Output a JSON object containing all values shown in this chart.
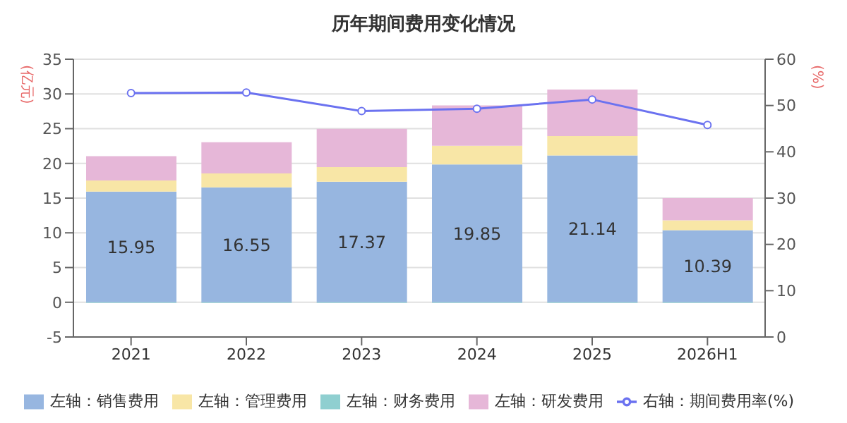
{
  "chart_data": {
    "type": "bar",
    "title": "历年期间费用变化情况",
    "ylabel": "(亿元)",
    "y2label": "(%)",
    "categories": [
      "2021",
      "2022",
      "2023",
      "2024",
      "2025",
      "2026H1"
    ],
    "stacked": true,
    "series": [
      {
        "name": "左轴：销售费用",
        "color": "#97b6e0",
        "values": [
          15.95,
          16.55,
          17.37,
          19.85,
          21.14,
          10.39
        ],
        "value_labels": [
          "15.95",
          "16.55",
          "17.37",
          "19.85",
          "21.14",
          "10.39"
        ]
      },
      {
        "name": "左轴：管理费用",
        "color": "#f8e6a6",
        "values": [
          1.6,
          2.0,
          2.1,
          2.7,
          2.8,
          1.4
        ]
      },
      {
        "name": "左轴：财务费用",
        "color": "#8fcfd0",
        "values": [
          -0.1,
          -0.1,
          -0.1,
          -0.1,
          -0.1,
          -0.1
        ]
      },
      {
        "name": "左轴：研发费用",
        "color": "#e6b7d8",
        "values": [
          3.5,
          4.5,
          5.5,
          5.8,
          6.7,
          3.2
        ]
      },
      {
        "name": "右轴：期间费用率(%)",
        "type": "line",
        "axis": "y2",
        "color": "#6b72f0",
        "marker": "circle",
        "values": [
          52.7,
          52.8,
          48.8,
          49.3,
          51.3,
          45.8
        ]
      }
    ],
    "ylim": [
      -5,
      35
    ],
    "yticks": [
      -5,
      0,
      5,
      10,
      15,
      20,
      25,
      30,
      35
    ],
    "y2lim": [
      0,
      60
    ],
    "y2ticks": [
      0,
      10,
      20,
      30,
      40,
      50,
      60
    ],
    "grid": "y",
    "legend": "bottom"
  }
}
